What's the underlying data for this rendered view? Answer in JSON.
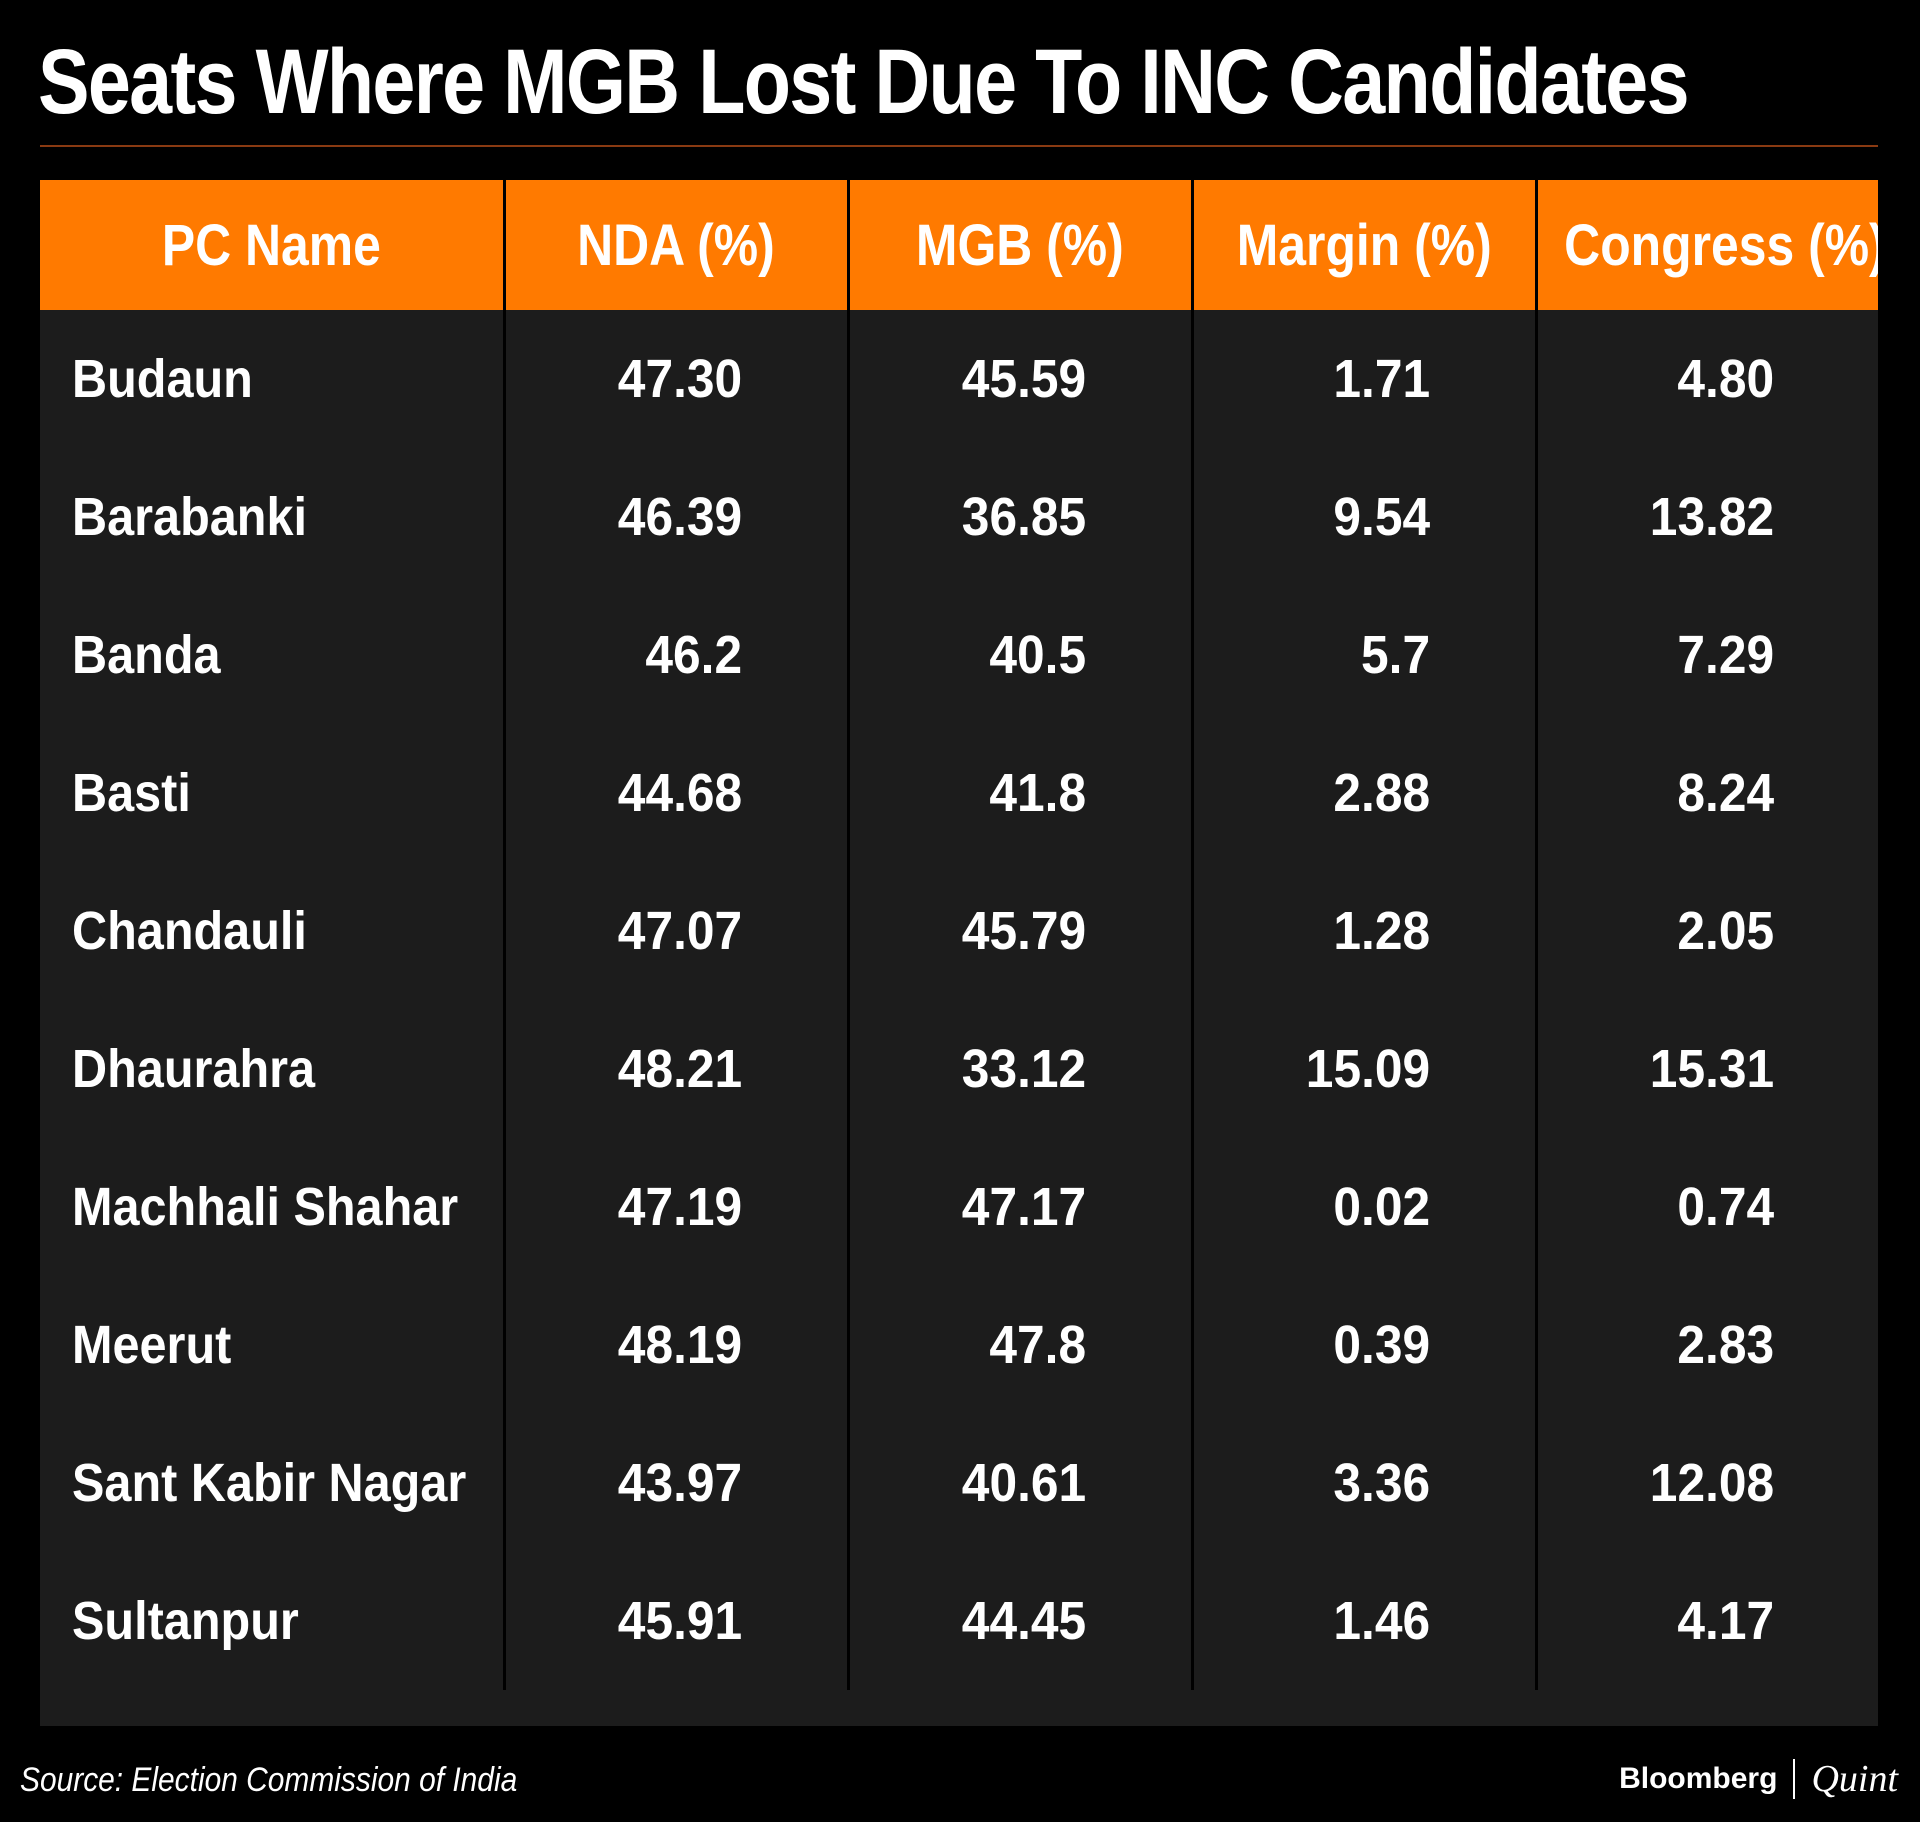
{
  "colors": {
    "background": "#000000",
    "header_fill": "#ff7a00",
    "body_fill": "#1c1c1c",
    "title_rule": "#8a3a12",
    "text": "#ffffff"
  },
  "chart_data": {
    "type": "table",
    "title": "Seats Where MGB Lost Due To INC Candidates",
    "columns": [
      "PC Name",
      "NDA (%)",
      "MGB (%)",
      "Margin (%)",
      "Congress (%)"
    ],
    "rows": [
      [
        "Budaun",
        "47.30",
        "45.59",
        "1.71",
        "4.80"
      ],
      [
        "Barabanki",
        "46.39",
        "36.85",
        "9.54",
        "13.82"
      ],
      [
        "Banda",
        "46.2",
        "40.5",
        "5.7",
        "7.29"
      ],
      [
        "Basti",
        "44.68",
        "41.8",
        "2.88",
        "8.24"
      ],
      [
        "Chandauli",
        "47.07",
        "45.79",
        "1.28",
        "2.05"
      ],
      [
        "Dhaurahra",
        "48.21",
        "33.12",
        "15.09",
        "15.31"
      ],
      [
        "Machhali Shahar",
        "47.19",
        "47.17",
        "0.02",
        "0.74"
      ],
      [
        "Meerut",
        "48.19",
        "47.8",
        "0.39",
        "2.83"
      ],
      [
        "Sant Kabir Nagar",
        "43.97",
        "40.61",
        "3.36",
        "12.08"
      ],
      [
        "Sultanpur",
        "45.91",
        "44.45",
        "1.46",
        "4.17"
      ]
    ],
    "source": "Source: Election Commission of India"
  },
  "branding": {
    "primary": "Bloomberg",
    "secondary": "Quint"
  }
}
